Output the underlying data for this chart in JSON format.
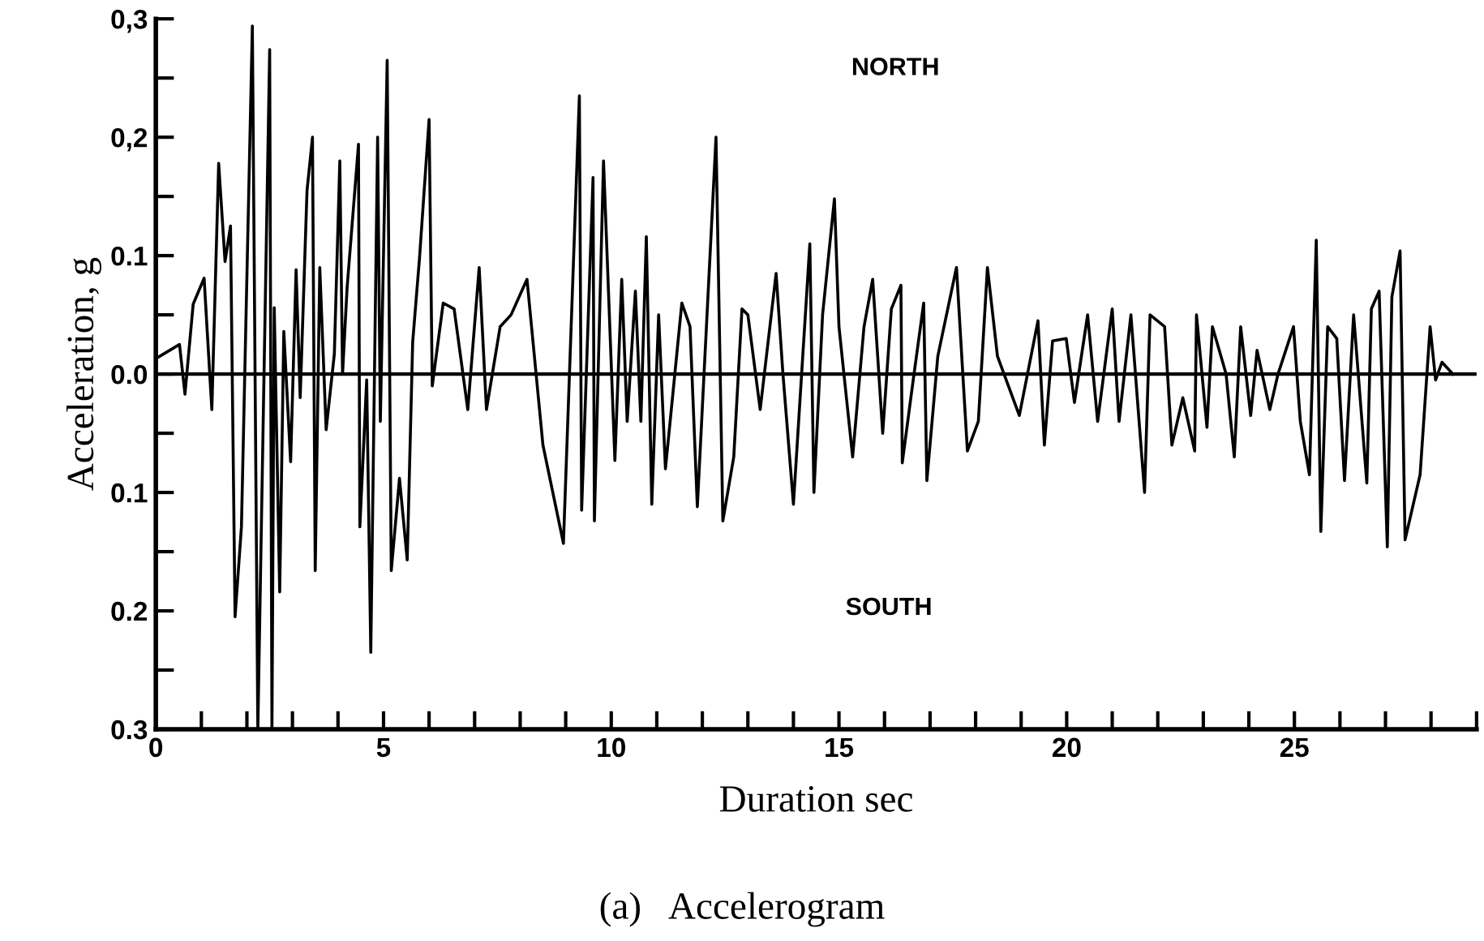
{
  "chart_data": {
    "type": "line",
    "xlabel": "Duration sec",
    "ylabel": "Acceleration, g",
    "annotations": [
      "NORTH",
      "SOUTH",
      "(a)   Accelerogram"
    ],
    "series": [
      {
        "color": "#000000",
        "x": [
          0,
          0.52,
          0.64,
          0.82,
          1.06,
          1.23,
          1.38,
          1.52,
          1.64,
          1.74,
          1.88,
          2.12,
          2.24,
          2.5,
          2.55,
          2.6,
          2.72,
          2.81,
          2.96,
          3.08,
          3.17,
          3.32,
          3.44,
          3.5,
          3.6,
          3.74,
          3.92,
          4.04,
          4.1,
          4.2,
          4.45,
          4.48,
          4.63,
          4.72,
          4.87,
          4.93,
          5.08,
          5.17,
          5.35,
          5.52,
          5.64,
          5.79,
          6.0,
          6.07,
          6.31,
          6.55,
          6.85,
          7.1,
          7.26,
          7.56,
          7.8,
          8.15,
          8.5,
          8.95,
          9.3,
          9.35,
          9.6,
          9.63,
          9.83,
          10.08,
          10.23,
          10.35,
          10.53,
          10.65,
          10.77,
          10.89,
          11.04,
          11.19,
          11.55,
          11.73,
          11.89,
          12.3,
          12.45,
          12.69,
          12.87,
          13.0,
          13.27,
          13.62,
          13.77,
          14.0,
          14.36,
          14.45,
          14.64,
          14.9,
          15.0,
          15.3,
          15.55,
          15.74,
          15.96,
          16.15,
          16.36,
          16.39,
          16.63,
          16.86,
          16.93,
          17.17,
          17.58,
          17.82,
          18.06,
          18.26,
          18.48,
          18.96,
          19.37,
          19.51,
          19.69,
          19.99,
          20.17,
          20.46,
          20.68,
          21.0,
          21.15,
          21.41,
          21.71,
          21.83,
          22.15,
          22.31,
          22.55,
          22.81,
          22.85,
          23.08,
          23.2,
          23.5,
          23.68,
          23.82,
          24.04,
          24.18,
          24.46,
          24.64,
          24.98,
          25.13,
          25.33,
          25.48,
          25.58,
          25.73,
          25.93,
          26.1,
          26.3,
          26.59,
          26.69,
          26.86,
          27.04,
          27.14,
          27.32,
          27.43,
          27.76,
          27.98,
          28.1,
          28.24,
          28.48
        ],
        "values": [
          0.013,
          0.025,
          -0.017,
          0.059,
          0.081,
          -0.03,
          0.178,
          0.095,
          0.125,
          -0.205,
          -0.129,
          0.294,
          -0.3,
          0.274,
          -0.3,
          0.056,
          -0.184,
          0.036,
          -0.074,
          0.088,
          -0.02,
          0.155,
          0.2,
          -0.166,
          0.09,
          -0.047,
          0.017,
          0.18,
          0,
          0.073,
          0.194,
          -0.129,
          -0.005,
          -0.235,
          0.2,
          -0.04,
          0.265,
          -0.166,
          -0.088,
          -0.157,
          0.027,
          0.098,
          0.215,
          -0.01,
          0.06,
          0.055,
          -0.03,
          0.09,
          -0.03,
          0.04,
          0.05,
          0.08,
          -0.06,
          -0.143,
          0.235,
          -0.115,
          0.166,
          -0.124,
          0.18,
          -0.073,
          0.08,
          -0.04,
          0.07,
          -0.04,
          0.116,
          -0.11,
          0.05,
          -0.08,
          0.06,
          0.04,
          -0.112,
          0.2,
          -0.124,
          -0.07,
          0.055,
          0.05,
          -0.03,
          0.085,
          0,
          -0.11,
          0.11,
          -0.1,
          0.05,
          0.148,
          0.04,
          -0.07,
          0.04,
          0.08,
          -0.05,
          0.055,
          0.075,
          -0.075,
          -0.005,
          0.06,
          -0.09,
          0.015,
          0.09,
          -0.065,
          -0.04,
          0.09,
          0.015,
          -0.035,
          0.045,
          -0.06,
          0.028,
          0.03,
          -0.024,
          0.05,
          -0.04,
          0.055,
          -0.04,
          0.05,
          -0.1,
          0.05,
          0.04,
          -0.06,
          -0.02,
          -0.065,
          0.05,
          -0.045,
          0.04,
          0,
          -0.07,
          0.04,
          -0.035,
          0.02,
          -0.03,
          0,
          0.04,
          -0.04,
          -0.085,
          0.113,
          -0.133,
          0.04,
          0.03,
          -0.09,
          0.05,
          -0.092,
          0.055,
          0.07,
          -0.146,
          0.065,
          0.104,
          -0.14,
          -0.085,
          0.04,
          -0.005,
          0.01,
          0
        ]
      }
    ],
    "ref_lines": [
      {
        "axis": "y",
        "value": 0,
        "color": "#000000"
      }
    ],
    "xlim": [
      0,
      29
    ],
    "xticks": [
      0,
      {
        "value": 1,
        "label": null
      },
      {
        "value": 2,
        "label": null
      },
      {
        "value": 3,
        "label": null
      },
      {
        "value": 4,
        "label": null
      },
      5,
      {
        "value": 6,
        "label": null
      },
      {
        "value": 7,
        "label": null
      },
      {
        "value": 8,
        "label": null
      },
      {
        "value": 9,
        "label": null
      },
      10,
      {
        "value": 11,
        "label": null
      },
      {
        "value": 12,
        "label": null
      },
      {
        "value": 13,
        "label": null
      },
      {
        "value": 14,
        "label": null
      },
      15,
      {
        "value": 16,
        "label": null
      },
      {
        "value": 17,
        "label": null
      },
      {
        "value": 18,
        "label": null
      },
      {
        "value": 19,
        "label": null
      },
      20,
      {
        "value": 21,
        "label": null
      },
      {
        "value": 22,
        "label": null
      },
      {
        "value": 23,
        "label": null
      },
      {
        "value": 24,
        "label": null
      },
      25,
      {
        "value": 26,
        "label": null
      },
      {
        "value": 27,
        "label": null
      },
      {
        "value": 28,
        "label": null
      },
      {
        "value": 29,
        "label": null
      }
    ],
    "ylim": [
      -0.3,
      0.3
    ],
    "yticks": [
      {
        "value": 0.3,
        "label": "0,3"
      },
      {
        "value": 0.25,
        "label": null
      },
      {
        "value": 0.2,
        "label": "0,2"
      },
      {
        "value": 0.15,
        "label": null
      },
      {
        "value": 0.1,
        "label": "0.1"
      },
      {
        "value": 0.05,
        "label": null
      },
      {
        "value": 0,
        "label": "0.0"
      },
      {
        "value": -0.05,
        "label": null
      },
      {
        "value": -0.1,
        "label": "0.1"
      },
      {
        "value": -0.15,
        "label": null
      },
      {
        "value": -0.2,
        "label": "0.2"
      },
      {
        "value": -0.25,
        "label": null
      },
      {
        "value": -0.3,
        "label": "0.3"
      }
    ],
    "marker": "none",
    "line_style": "solid"
  }
}
